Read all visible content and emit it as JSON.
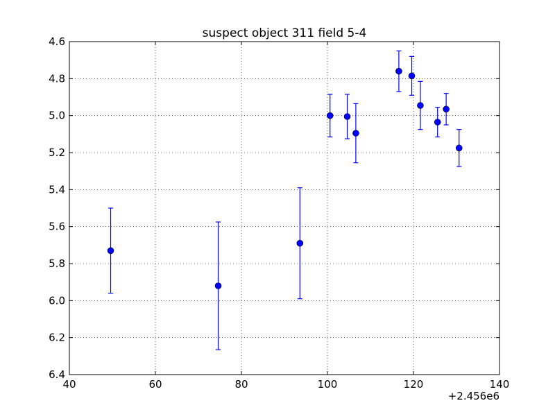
{
  "chart_data": {
    "type": "scatter",
    "title": "suspect object 311 field 5-4",
    "xlabel": "",
    "ylabel": "",
    "x_offset_label": "+2.456e6",
    "xlim": [
      40,
      140
    ],
    "ylim": [
      4.6,
      6.4
    ],
    "y_inverted": true,
    "grid": true,
    "x_ticks": [
      40,
      60,
      80,
      100,
      120,
      140
    ],
    "x_tick_labels": [
      "40",
      "60",
      "80",
      "100",
      "120",
      "140"
    ],
    "y_ticks": [
      4.6,
      4.8,
      5.0,
      5.2,
      5.4,
      5.6,
      5.8,
      6.0,
      6.2,
      6.4
    ],
    "y_tick_labels": [
      "4.6",
      "4.8",
      "5.0",
      "5.2",
      "5.4",
      "5.6",
      "5.8",
      "6.0",
      "6.2",
      "6.4"
    ],
    "marker_color": "#0000ff",
    "series": [
      {
        "points": [
          {
            "x": 49.6,
            "y": 5.73,
            "err": 0.23
          },
          {
            "x": 74.6,
            "y": 5.92,
            "err": 0.345
          },
          {
            "x": 93.6,
            "y": 5.69,
            "err": 0.3
          },
          {
            "x": 100.6,
            "y": 5.0,
            "err": 0.115
          },
          {
            "x": 104.6,
            "y": 5.005,
            "err": 0.12
          },
          {
            "x": 106.6,
            "y": 5.095,
            "err": 0.16
          },
          {
            "x": 116.6,
            "y": 4.76,
            "err": 0.11
          },
          {
            "x": 119.6,
            "y": 4.785,
            "err": 0.105
          },
          {
            "x": 121.6,
            "y": 4.945,
            "err": 0.13
          },
          {
            "x": 125.6,
            "y": 5.035,
            "err": 0.08
          },
          {
            "x": 127.6,
            "y": 4.965,
            "err": 0.085
          },
          {
            "x": 130.6,
            "y": 5.175,
            "err": 0.1
          }
        ]
      }
    ]
  }
}
